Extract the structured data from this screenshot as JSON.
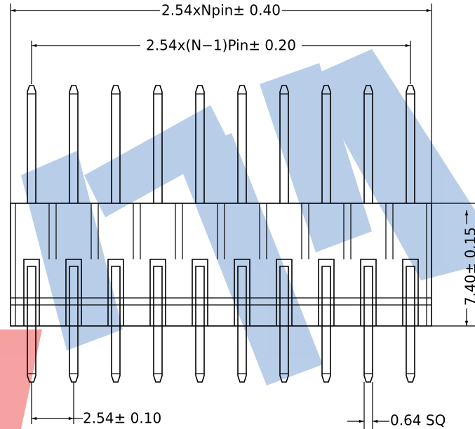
{
  "dimensions": {
    "total_width": "2.54xNpin± 0.40",
    "pin_span": "2.54x(N−1)Pin± 0.20",
    "pitch": "2.54± 0.10",
    "pin_size": "0.64 SQ",
    "body_height": "7.40± 0.15"
  }
}
